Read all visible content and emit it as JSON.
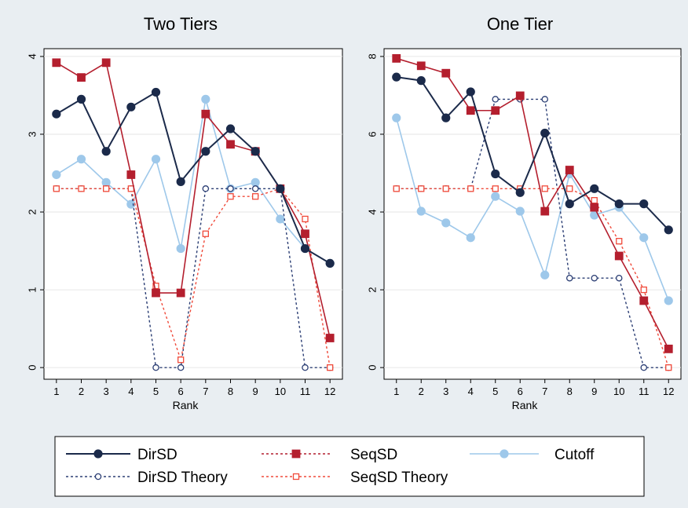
{
  "colors": {
    "dirsd": "#1b2a4a",
    "dirsd_theory": "#2b3e74",
    "seqsd": "#b41f2e",
    "seqsd_theory": "#f04a3a",
    "cutoff": "#9ec8ea",
    "page_bg": "#e9eef2",
    "plot_bg": "#ffffff"
  },
  "legend": {
    "items": [
      {
        "key": "dirsd",
        "label": "DirSD",
        "line": "solid",
        "marker": "filled-circle"
      },
      {
        "key": "seqsd",
        "label": "SeqSD",
        "line": "dashed",
        "marker": "filled-square"
      },
      {
        "key": "cutoff",
        "label": "Cutoff",
        "line": "solid",
        "marker": "filled-circle"
      },
      {
        "key": "dirsd_theory",
        "label": "DirSD Theory",
        "line": "dashed",
        "marker": "hollow-circle"
      },
      {
        "key": "seqsd_theory",
        "label": "SeqSD Theory",
        "line": "dashed",
        "marker": "hollow-square"
      }
    ]
  },
  "chart_data": [
    {
      "type": "line",
      "title": "Two Tiers",
      "xlabel": "Rank",
      "ylabel": "",
      "x": [
        1,
        2,
        3,
        4,
        5,
        6,
        7,
        8,
        9,
        10,
        11,
        12
      ],
      "xlim": [
        0.5,
        12.5
      ],
      "ylim": [
        -0.15,
        4.1
      ],
      "yticks": [
        0,
        1,
        2,
        3,
        4
      ],
      "yticklabels": [
        "0",
        "1",
        "2",
        "3",
        "4"
      ],
      "xticklabels": [
        "1",
        "2",
        "3",
        "4",
        "5",
        "6",
        "7",
        "8",
        "9",
        "10",
        "11",
        "12"
      ],
      "grid": "horizontal",
      "series": [
        {
          "key": "cutoff",
          "name": "Cutoff",
          "values": [
            2.48,
            2.68,
            2.38,
            2.1,
            2.68,
            1.53,
            3.45,
            2.3,
            2.38,
            1.91,
            1.53,
            1.34
          ]
        },
        {
          "key": "dirsd_theory",
          "name": "DirSD Theory",
          "values": [
            2.3,
            2.3,
            2.3,
            2.3,
            0,
            0,
            2.3,
            2.3,
            2.3,
            2.3,
            0,
            0
          ]
        },
        {
          "key": "seqsd_theory",
          "name": "SeqSD Theory",
          "values": [
            2.3,
            2.3,
            2.3,
            2.3,
            1.05,
            0.1,
            1.72,
            2.2,
            2.2,
            2.3,
            1.91,
            0
          ]
        },
        {
          "key": "seqsd",
          "name": "SeqSD",
          "values": [
            3.92,
            3.73,
            3.92,
            2.48,
            0.96,
            0.96,
            3.26,
            2.87,
            2.78,
            2.3,
            1.72,
            0.38
          ]
        },
        {
          "key": "dirsd",
          "name": "DirSD",
          "values": [
            3.26,
            3.45,
            2.78,
            3.35,
            3.54,
            2.39,
            2.78,
            3.07,
            2.78,
            2.3,
            1.53,
            1.34
          ]
        }
      ]
    },
    {
      "type": "line",
      "title": "One Tier",
      "xlabel": "Rank",
      "ylabel": "",
      "x": [
        1,
        2,
        3,
        4,
        5,
        6,
        7,
        8,
        9,
        10,
        11,
        12
      ],
      "xlim": [
        0.5,
        12.5
      ],
      "ylim": [
        -0.3,
        8.2
      ],
      "yticks": [
        0,
        2,
        4,
        6,
        8
      ],
      "yticklabels": [
        "0",
        "2",
        "4",
        "6",
        "8"
      ],
      "xticklabels": [
        "1",
        "2",
        "3",
        "4",
        "5",
        "6",
        "7",
        "8",
        "9",
        "10",
        "11",
        "12"
      ],
      "grid": "horizontal",
      "series": [
        {
          "key": "cutoff",
          "name": "Cutoff",
          "values": [
            6.42,
            4.02,
            3.72,
            3.34,
            4.4,
            4.02,
            2.38,
            4.98,
            3.92,
            4.12,
            3.34,
            1.72
          ]
        },
        {
          "key": "dirsd_theory",
          "name": "DirSD Theory",
          "values": [
            4.6,
            4.6,
            4.6,
            4.6,
            6.9,
            6.9,
            6.9,
            2.3,
            2.3,
            2.3,
            0,
            0
          ]
        },
        {
          "key": "seqsd_theory",
          "name": "SeqSD Theory",
          "values": [
            4.6,
            4.6,
            4.6,
            4.6,
            4.6,
            4.6,
            4.6,
            4.6,
            4.3,
            3.25,
            2.0,
            0
          ]
        },
        {
          "key": "seqsd",
          "name": "SeqSD",
          "values": [
            7.95,
            7.76,
            7.57,
            6.61,
            6.61,
            6.99,
            4.02,
            5.08,
            4.12,
            2.87,
            1.72,
            0.48
          ]
        },
        {
          "key": "dirsd",
          "name": "DirSD",
          "values": [
            7.47,
            7.38,
            6.42,
            7.09,
            4.98,
            4.5,
            6.03,
            4.21,
            4.6,
            4.21,
            4.21,
            3.54
          ]
        }
      ]
    }
  ]
}
